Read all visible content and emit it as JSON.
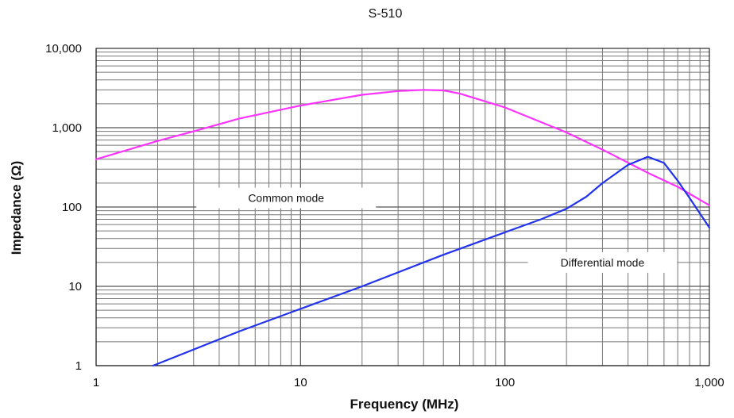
{
  "chart_data": {
    "type": "line",
    "title": "S-510",
    "xlabel": "Frequency (MHz)",
    "ylabel": "Impedance (Ω)",
    "x_scale": "log",
    "y_scale": "log",
    "xlim": [
      1,
      1000
    ],
    "ylim": [
      1,
      10000
    ],
    "grid": true,
    "x_ticks": [
      1,
      10,
      100,
      1000
    ],
    "x_tick_labels": [
      "1",
      "10",
      "100",
      "1,000"
    ],
    "y_ticks": [
      1,
      10,
      100,
      1000,
      10000
    ],
    "y_tick_labels": [
      "1",
      "10",
      "100",
      "1,000",
      "10,000"
    ],
    "series": [
      {
        "name": "Common mode",
        "color": "#ff33ff",
        "x": [
          1,
          2,
          3,
          5,
          10,
          20,
          30,
          40,
          50,
          60,
          80,
          100,
          200,
          300,
          500,
          700,
          1000
        ],
        "y": [
          400,
          680,
          900,
          1300,
          1900,
          2600,
          2900,
          3000,
          2950,
          2700,
          2150,
          1800,
          870,
          530,
          270,
          180,
          105
        ]
      },
      {
        "name": "Differential mode",
        "color": "#2233ee",
        "x": [
          1.9,
          5,
          10,
          20,
          50,
          100,
          150,
          200,
          250,
          300,
          400,
          500,
          600,
          700,
          800,
          1000
        ],
        "y": [
          1,
          2.7,
          5.2,
          10,
          25,
          48,
          70,
          95,
          135,
          200,
          340,
          430,
          360,
          215,
          130,
          55
        ]
      }
    ],
    "annotations": [
      {
        "text": "Common mode",
        "x": 8.5,
        "y": 130
      },
      {
        "text": "Differential mode",
        "x": 300,
        "y": 20
      }
    ]
  }
}
